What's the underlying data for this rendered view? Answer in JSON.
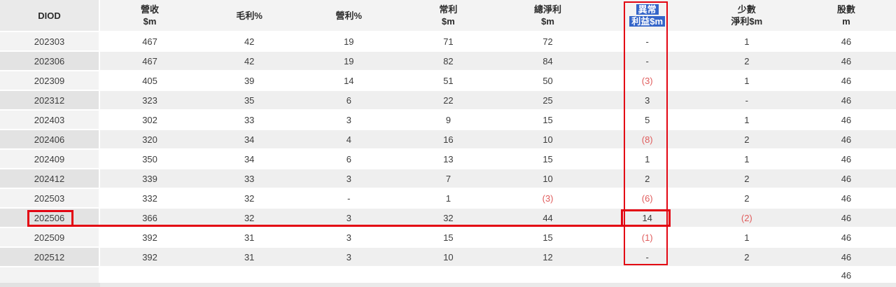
{
  "table": {
    "ticker": "DIOD",
    "columns": [
      {
        "key": "period",
        "lines": [
          "DIOD"
        ],
        "selected": false
      },
      {
        "key": "revenue_m",
        "lines": [
          "營收",
          "$m"
        ],
        "selected": false
      },
      {
        "key": "gross_margin_pct",
        "lines": [
          "毛利%"
        ],
        "selected": false
      },
      {
        "key": "operating_margin_pct",
        "lines": [
          "營利%"
        ],
        "selected": false
      },
      {
        "key": "normal_profit_m",
        "lines": [
          "常利",
          "$m"
        ],
        "selected": false
      },
      {
        "key": "total_net_profit_m",
        "lines": [
          "總淨利",
          "$m"
        ],
        "selected": false
      },
      {
        "key": "abnormal_gain_m",
        "lines": [
          "異常",
          "利益$m"
        ],
        "selected": true
      },
      {
        "key": "minority_net_profit_m",
        "lines": [
          "少數",
          "淨利$m"
        ],
        "selected": false
      },
      {
        "key": "shares_m",
        "lines": [
          "股數",
          "m"
        ],
        "selected": false
      }
    ],
    "rows": [
      {
        "period": "202303",
        "values": [
          "467",
          "42",
          "19",
          "71",
          "72",
          "-",
          "1",
          "46"
        ]
      },
      {
        "period": "202306",
        "values": [
          "467",
          "42",
          "19",
          "82",
          "84",
          "-",
          "2",
          "46"
        ]
      },
      {
        "period": "202309",
        "values": [
          "405",
          "39",
          "14",
          "51",
          "50",
          "(3)",
          "1",
          "46"
        ]
      },
      {
        "period": "202312",
        "values": [
          "323",
          "35",
          "6",
          "22",
          "25",
          "3",
          "-",
          "46"
        ]
      },
      {
        "period": "202403",
        "values": [
          "302",
          "33",
          "3",
          "9",
          "15",
          "5",
          "1",
          "46"
        ]
      },
      {
        "period": "202406",
        "values": [
          "320",
          "34",
          "4",
          "16",
          "10",
          "(8)",
          "2",
          "46"
        ]
      },
      {
        "period": "202409",
        "values": [
          "350",
          "34",
          "6",
          "13",
          "15",
          "1",
          "1",
          "46"
        ]
      },
      {
        "period": "202412",
        "values": [
          "339",
          "33",
          "3",
          "7",
          "10",
          "2",
          "2",
          "46"
        ]
      },
      {
        "period": "202503",
        "values": [
          "332",
          "32",
          "-",
          "1",
          "(3)",
          "(6)",
          "2",
          "46"
        ]
      },
      {
        "period": "202506",
        "values": [
          "366",
          "32",
          "3",
          "32",
          "44",
          "14",
          "(2)",
          "46"
        ]
      },
      {
        "period": "202509",
        "values": [
          "392",
          "31",
          "3",
          "15",
          "15",
          "(1)",
          "1",
          "46"
        ]
      },
      {
        "period": "202512",
        "values": [
          "392",
          "31",
          "3",
          "10",
          "12",
          "-",
          "2",
          "46"
        ]
      },
      {
        "period": "",
        "values": [
          "",
          "",
          "",
          "",
          "",
          "",
          "",
          "46"
        ]
      }
    ],
    "annotations": {
      "highlighted_column_header": "異常利益$m",
      "highlighted_row_period": "202506",
      "highlighted_cell_value": "14"
    }
  },
  "colors": {
    "annotation_red": "#e30613",
    "selection_blue": "#3465c9",
    "negative_red": "#e05c5c"
  }
}
